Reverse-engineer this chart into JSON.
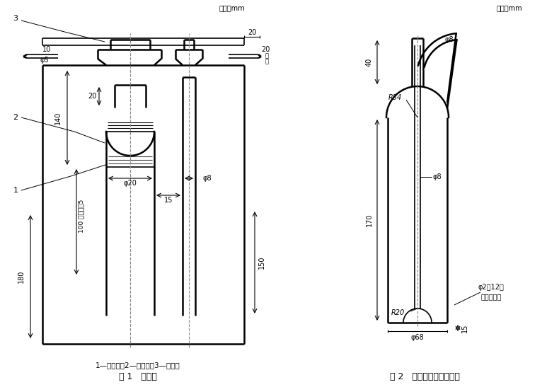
{
  "fig1": {
    "title": "图 1   吸附管",
    "caption": "1—多孔板；2—吸附管；3—磨口塞",
    "unit_label": "单位：mm"
  },
  "fig2": {
    "title": "图 2   四氯化碳蒸气发生瓶",
    "unit_label": "单位：mm"
  },
  "bg_color": "#ffffff",
  "line_color": "#000000",
  "font_size_label": 8,
  "font_size_dim": 7,
  "font_size_title": 9,
  "font_size_caption": 7.5
}
